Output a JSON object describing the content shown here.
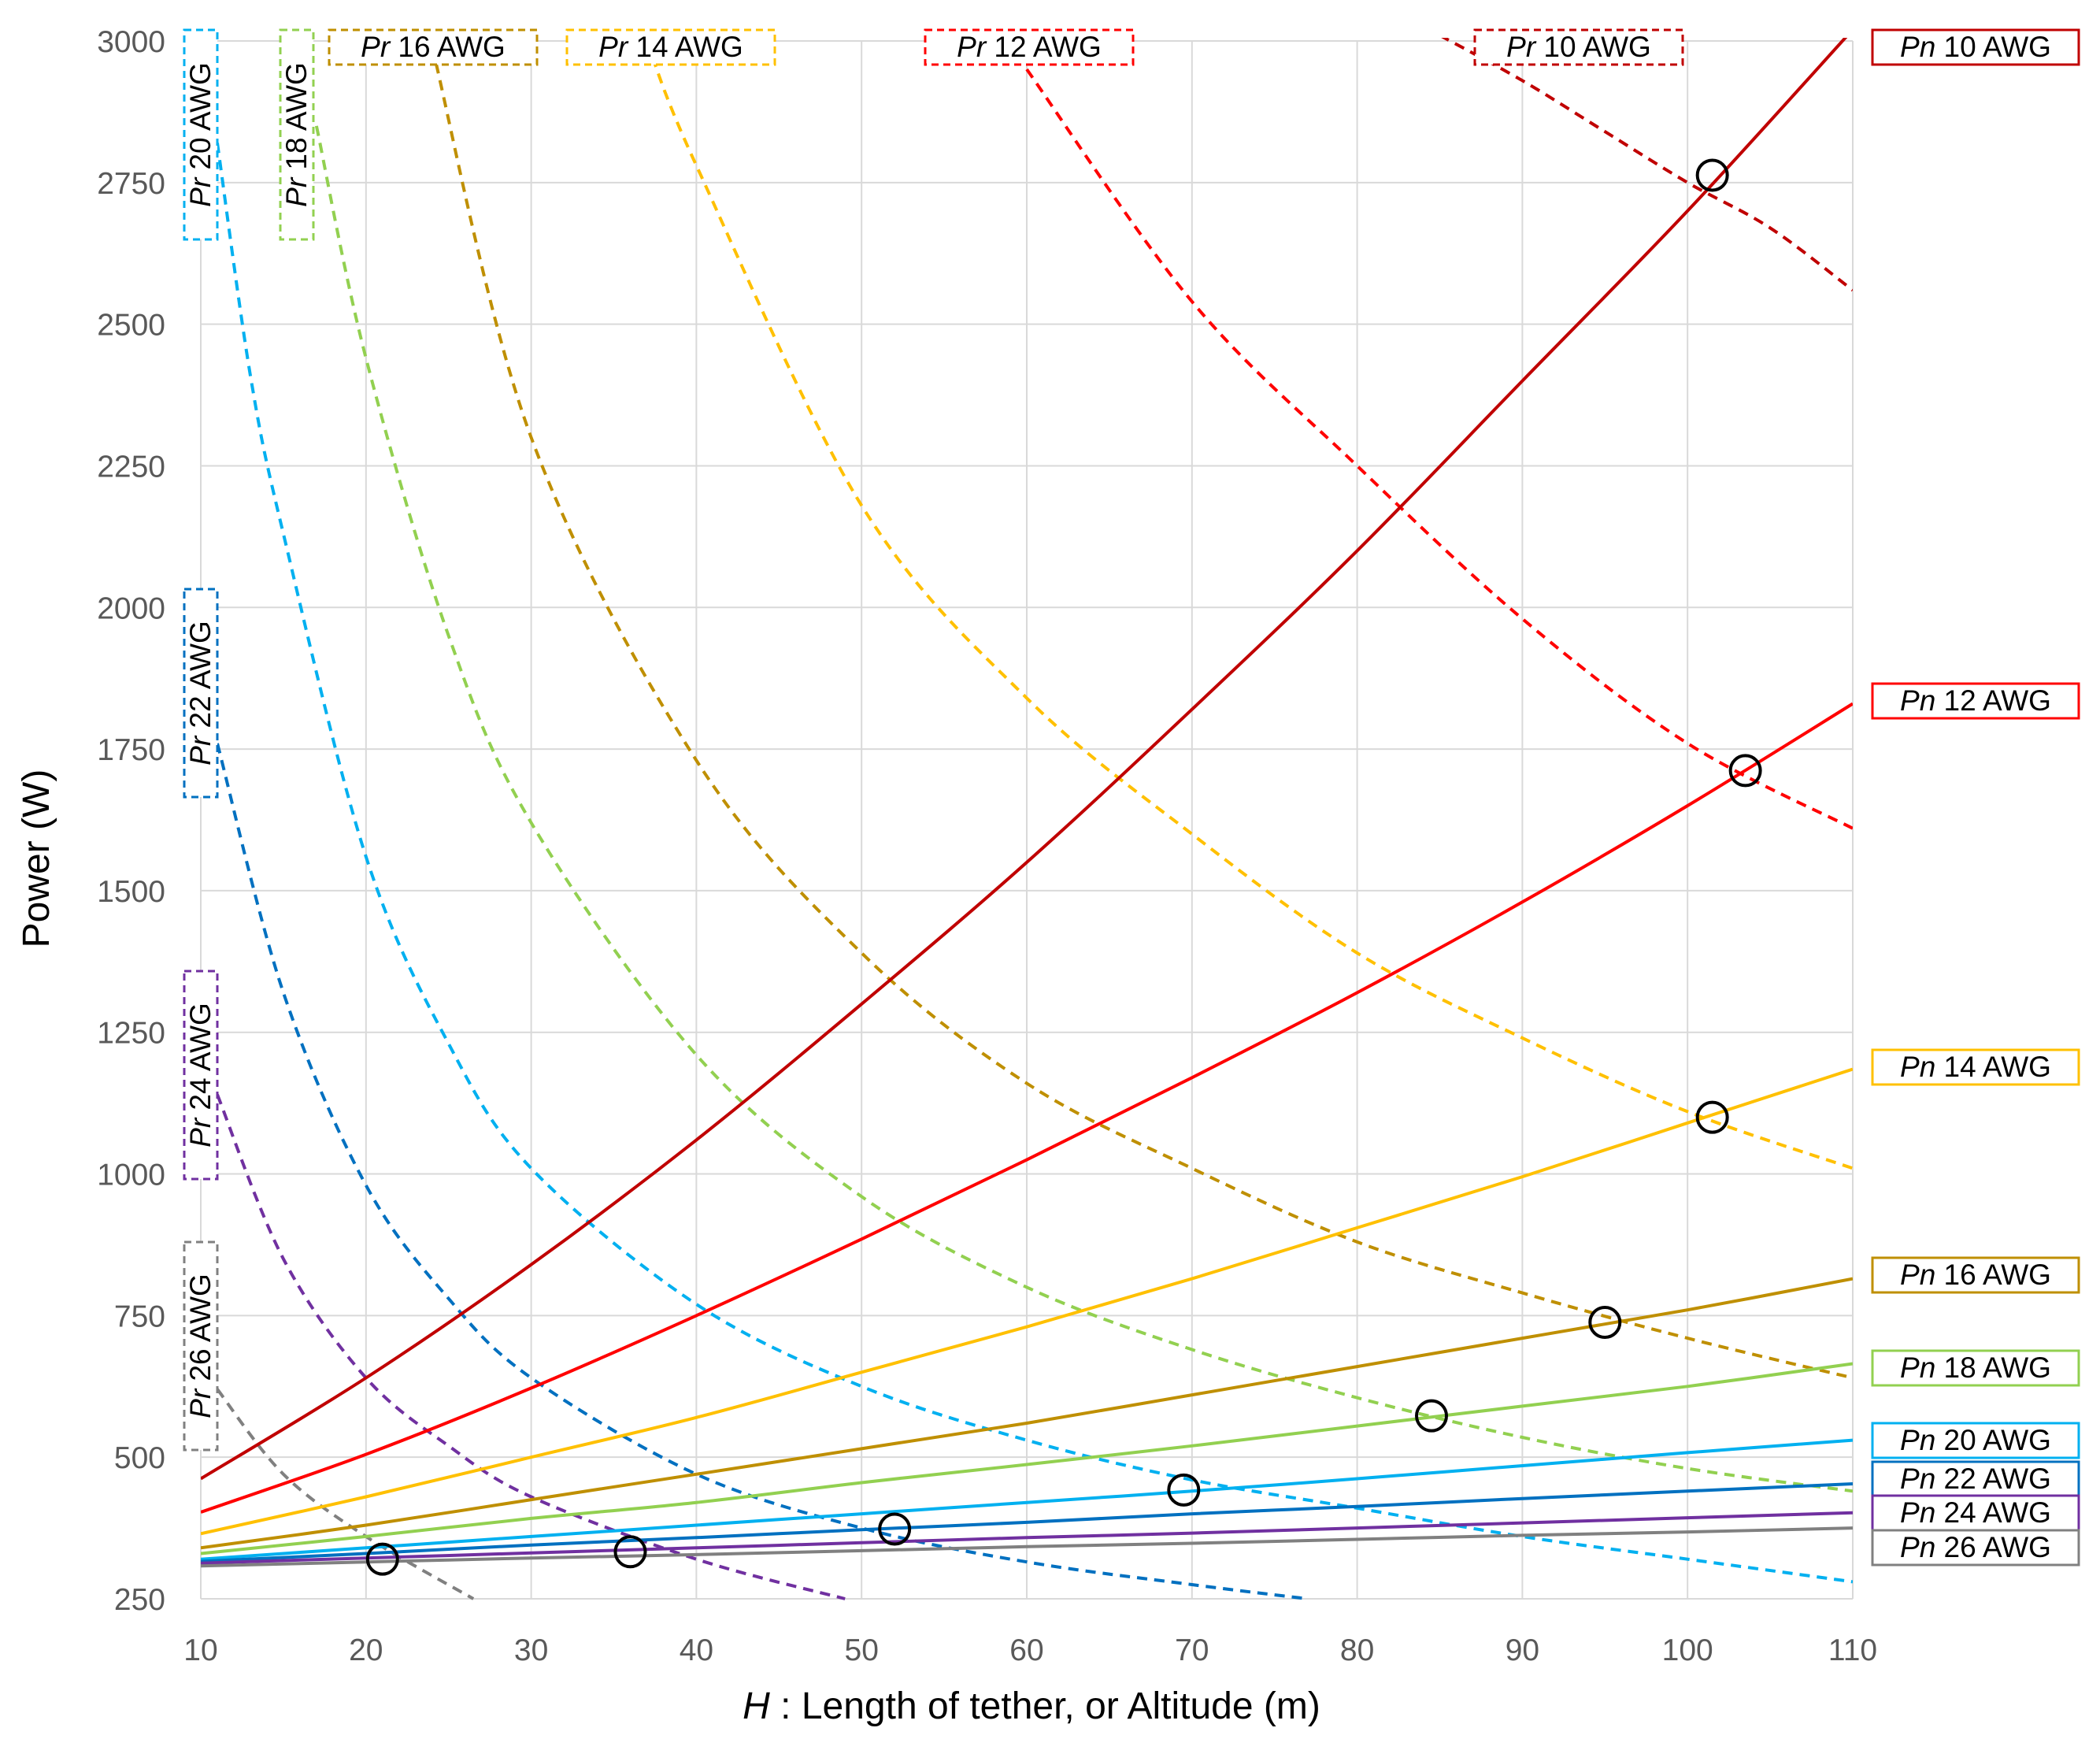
{
  "chart_data": {
    "type": "line",
    "title": "",
    "xlabel_prefix": "H",
    "xlabel": " : Length of tether, or Altitude (m)",
    "ylabel": "Power (W)",
    "xlim": [
      10,
      110
    ],
    "ylim": [
      250,
      3000
    ],
    "xticks": [
      10,
      20,
      30,
      40,
      50,
      60,
      70,
      80,
      90,
      100,
      110
    ],
    "yticks": [
      250,
      500,
      750,
      1000,
      1250,
      1500,
      1750,
      2000,
      2250,
      2500,
      2750,
      3000
    ],
    "grid": true,
    "series_pn": [
      {
        "name": "Pn 10 AWG",
        "prefix": "Pn",
        "awg": " 10 AWG",
        "color": "#C00000",
        "x": [
          10,
          20,
          30,
          40,
          50,
          60,
          70,
          80,
          90,
          100,
          110
        ],
        "y": [
          462,
          640,
          840,
          1060,
          1300,
          1550,
          1820,
          2100,
          2400,
          2700,
          3020
        ]
      },
      {
        "name": "Pn 12 AWG",
        "prefix": "Pn",
        "awg": " 12 AWG",
        "color": "#FF0000",
        "x": [
          10,
          20,
          30,
          40,
          50,
          60,
          70,
          80,
          90,
          100,
          110
        ],
        "y": [
          403,
          505,
          622,
          750,
          885,
          1025,
          1170,
          1320,
          1480,
          1650,
          1830
        ]
      },
      {
        "name": "Pn 14 AWG",
        "prefix": "Pn",
        "awg": " 14 AWG",
        "color": "#FFC000",
        "x": [
          10,
          20,
          30,
          40,
          50,
          60,
          70,
          80,
          90,
          100,
          110
        ],
        "y": [
          365,
          430,
          500,
          570,
          650,
          730,
          815,
          905,
          995,
          1090,
          1185
        ]
      },
      {
        "name": "Pn 16 AWG",
        "prefix": "Pn",
        "awg": " 16 AWG",
        "color": "#BF8F00",
        "x": [
          10,
          20,
          30,
          40,
          50,
          60,
          70,
          80,
          90,
          100,
          110
        ],
        "y": [
          340,
          380,
          425,
          470,
          515,
          560,
          610,
          660,
          710,
          760,
          815
        ]
      },
      {
        "name": "Pn 18 AWG",
        "prefix": "Pn",
        "awg": " 18 AWG",
        "color": "#92D050",
        "x": [
          10,
          20,
          30,
          40,
          50,
          60,
          70,
          80,
          90,
          100,
          110
        ],
        "y": [
          330,
          360,
          392,
          420,
          455,
          487,
          520,
          555,
          590,
          625,
          665
        ]
      },
      {
        "name": "Pn 20 AWG",
        "prefix": "Pn",
        "awg": " 20 AWG",
        "color": "#00B0F0",
        "x": [
          10,
          20,
          30,
          40,
          50,
          60,
          70,
          80,
          90,
          100,
          110
        ],
        "y": [
          320,
          340,
          360,
          380,
          400,
          420,
          440,
          462,
          485,
          508,
          530
        ]
      },
      {
        "name": "Pn 22 AWG",
        "prefix": "Pn",
        "awg": " 22 AWG",
        "color": "#0070C0",
        "x": [
          10,
          20,
          30,
          40,
          50,
          60,
          70,
          80,
          90,
          100,
          110
        ],
        "y": [
          316,
          330,
          345,
          358,
          372,
          385,
          400,
          413,
          427,
          440,
          453
        ]
      },
      {
        "name": "Pn 24 AWG",
        "prefix": "Pn",
        "awg": " 24 AWG",
        "color": "#7030A0",
        "x": [
          10,
          20,
          30,
          40,
          50,
          60,
          70,
          80,
          90,
          100,
          110
        ],
        "y": [
          313,
          322,
          331,
          340,
          349,
          358,
          366,
          375,
          384,
          393,
          402
        ]
      },
      {
        "name": "Pn 26 AWG",
        "prefix": "Pn",
        "awg": " 26 AWG",
        "color": "#808080",
        "x": [
          10,
          20,
          30,
          40,
          50,
          60,
          70,
          80,
          90,
          100,
          110
        ],
        "y": [
          308,
          315,
          322,
          328,
          335,
          342,
          348,
          355,
          362,
          368,
          375
        ]
      }
    ],
    "series_pr": [
      {
        "name": "Pr 10 AWG",
        "prefix": "Pr",
        "awg": " 10 AWG",
        "color": "#C00000",
        "x": [
          85,
          90,
          95,
          100,
          105,
          110
        ],
        "y": [
          3010,
          2930,
          2840,
          2750,
          2670,
          2560
        ]
      },
      {
        "name": "Pr 12 AWG",
        "prefix": "Pr",
        "awg": " 12 AWG",
        "color": "#FF0000",
        "x": [
          60,
          70,
          80,
          90,
          100,
          110
        ],
        "y": [
          2950,
          2540,
          2250,
          1980,
          1760,
          1610
        ]
      },
      {
        "name": "Pr 14 AWG",
        "prefix": "Pr",
        "awg": " 14 AWG",
        "color": "#FFC000",
        "x": [
          37,
          40,
          50,
          60,
          70,
          80,
          90,
          100,
          110
        ],
        "y": [
          3000,
          2780,
          2180,
          1840,
          1600,
          1390,
          1240,
          1110,
          1010
        ]
      },
      {
        "name": "Pr 16 AWG",
        "prefix": "Pr",
        "awg": " 16 AWG",
        "color": "#BF8F00",
        "x": [
          24,
          30,
          40,
          50,
          60,
          70,
          80,
          90,
          100,
          110
        ],
        "y": [
          2990,
          2300,
          1730,
          1390,
          1160,
          1010,
          880,
          790,
          710,
          640
        ]
      },
      {
        "name": "Pr 18 AWG",
        "prefix": "Pr",
        "awg": " 18 AWG",
        "color": "#92D050",
        "x": [
          17,
          20,
          25,
          30,
          40,
          50,
          60,
          70,
          80,
          90,
          100,
          110
        ],
        "y": [
          2850,
          2440,
          1950,
          1620,
          1210,
          960,
          800,
          690,
          605,
          535,
          480,
          440
        ]
      },
      {
        "name": "Pr 20 AWG",
        "prefix": "Pr",
        "awg": " 20 AWG",
        "color": "#00B0F0",
        "x": [
          11,
          13,
          15,
          20,
          25,
          30,
          40,
          50,
          60,
          70,
          80,
          90,
          100,
          110
        ],
        "y": [
          2820,
          2410,
          2130,
          1560,
          1230,
          1010,
          770,
          625,
          530,
          460,
          410,
          360,
          320,
          280
        ]
      },
      {
        "name": "Pr 22 AWG",
        "prefix": "Pr",
        "awg": " 22 AWG",
        "color": "#0070C0",
        "x": [
          11,
          15,
          20,
          25,
          30,
          40,
          50,
          60,
          70,
          77
        ],
        "y": [
          1760,
          1320,
          980,
          780,
          640,
          470,
          375,
          315,
          275,
          250
        ]
      },
      {
        "name": "Pr 24 AWG",
        "prefix": "Pr",
        "awg": " 24 AWG",
        "color": "#7030A0",
        "x": [
          11,
          15,
          20,
          25,
          30,
          40,
          49
        ],
        "y": [
          1140,
          850,
          640,
          520,
          430,
          320,
          250
        ]
      },
      {
        "name": "Pr 26 AWG",
        "prefix": "Pr",
        "awg": " 26 AWG",
        "color": "#808080",
        "x": [
          11,
          15,
          20,
          26.5
        ],
        "y": [
          620,
          470,
          360,
          250
        ]
      }
    ],
    "markers": [
      {
        "x": 21,
        "y": 320
      },
      {
        "x": 36,
        "y": 333
      },
      {
        "x": 52,
        "y": 373
      },
      {
        "x": 69.5,
        "y": 442
      },
      {
        "x": 84.5,
        "y": 573
      },
      {
        "x": 95,
        "y": 738
      },
      {
        "x": 101.5,
        "y": 1100
      },
      {
        "x": 103.5,
        "y": 1712
      },
      {
        "x": 101.5,
        "y": 2763
      }
    ]
  }
}
